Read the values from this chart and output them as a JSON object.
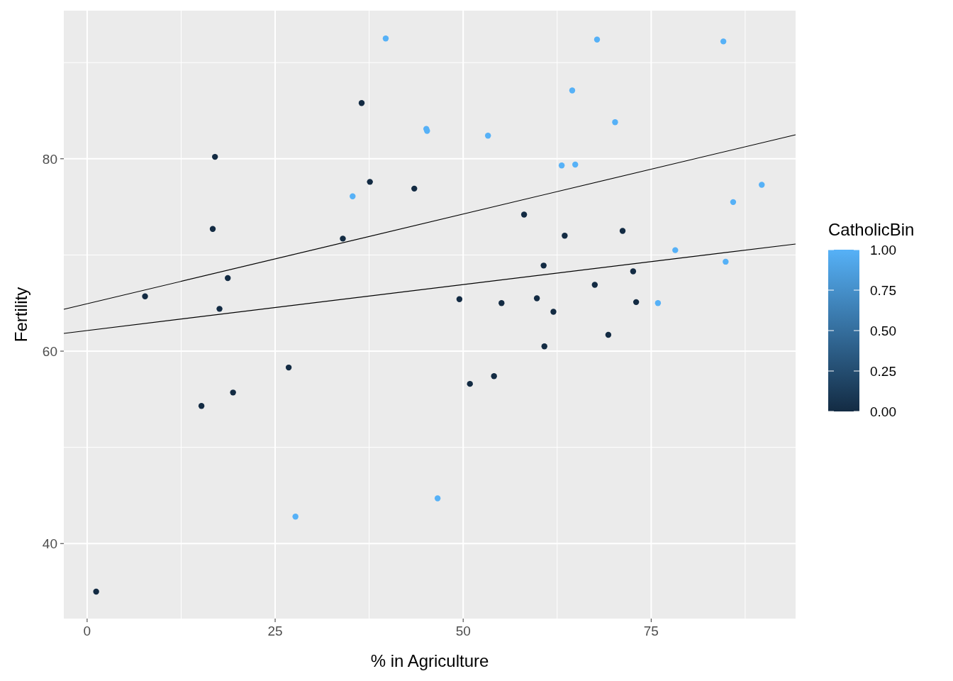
{
  "chart_data": {
    "type": "scatter",
    "xlabel": "% in Agriculture",
    "ylabel": "Fertility",
    "clabel": "CatholicBin",
    "grid": true,
    "xlim": [
      -3.1,
      94.2
    ],
    "ylim": [
      32.2,
      95.4
    ],
    "xticks": [
      0,
      {
        "value": 12.5,
        "label": null
      },
      25,
      {
        "value": 37.5,
        "label": null
      },
      50,
      {
        "value": 62.5,
        "label": null
      },
      75,
      {
        "value": 87.5,
        "label": null
      }
    ],
    "yticks": [
      40,
      {
        "value": 50,
        "label": null
      },
      60,
      {
        "value": 70,
        "label": null
      },
      80,
      {
        "value": 90,
        "label": null
      }
    ],
    "clim": [
      0,
      1
    ],
    "cticks": [
      {
        "value": 0,
        "label": "0.00"
      },
      {
        "value": 0.25,
        "label": "0.25"
      },
      {
        "value": 0.5,
        "label": "0.50"
      },
      {
        "value": 0.75,
        "label": "0.75"
      },
      {
        "value": 1,
        "label": "1.00"
      }
    ],
    "series": [
      {
        "marker": "circle",
        "x": [
          17.0,
          45.1,
          39.7,
          36.5,
          43.5,
          35.3,
          70.2,
          67.8,
          53.3,
          45.2,
          64.5,
          62.0,
          67.5,
          60.7,
          69.3,
          72.6,
          34.0,
          19.4,
          15.2,
          73.0,
          59.8,
          55.1,
          50.9,
          54.1,
          71.2,
          58.1,
          63.5,
          60.8,
          26.8,
          49.5,
          7.7,
          16.7,
          17.6,
          37.6,
          18.7,
          1.2,
          46.6,
          27.7,
          85.9,
          84.9,
          89.7,
          78.2,
          64.9,
          75.9,
          84.6,
          63.1
        ],
        "values": [
          80.2,
          83.1,
          92.5,
          85.8,
          76.9,
          76.1,
          83.8,
          92.4,
          82.4,
          82.9,
          87.1,
          64.1,
          66.9,
          68.9,
          61.7,
          68.3,
          71.7,
          55.7,
          54.3,
          65.1,
          65.5,
          65.0,
          56.6,
          57.4,
          72.5,
          74.2,
          72.0,
          60.5,
          58.3,
          65.4,
          65.7,
          72.7,
          64.4,
          77.6,
          67.6,
          35.0,
          44.7,
          42.8,
          75.5,
          69.3,
          77.3,
          70.5,
          79.4,
          65.0,
          92.2,
          79.3
        ],
        "cvalues": [
          0,
          1,
          1,
          0,
          0,
          1,
          1,
          1,
          1,
          1,
          1,
          0,
          0,
          0,
          0,
          0,
          0,
          0,
          0,
          0,
          0,
          0,
          0,
          0,
          0,
          0,
          0,
          0,
          0,
          0,
          0,
          0,
          0,
          0,
          0,
          0,
          1,
          1,
          1,
          1,
          1,
          1,
          1,
          1,
          1,
          1
        ],
        "colors": [
          "#132b43",
          "#56b1f7",
          "#56b1f7",
          "#132b43",
          "#132b43",
          "#56b1f7",
          "#56b1f7",
          "#56b1f7",
          "#56b1f7",
          "#56b1f7",
          "#56b1f7",
          "#132b43",
          "#132b43",
          "#132b43",
          "#132b43",
          "#132b43",
          "#132b43",
          "#132b43",
          "#132b43",
          "#132b43",
          "#132b43",
          "#132b43",
          "#132b43",
          "#132b43",
          "#132b43",
          "#132b43",
          "#132b43",
          "#132b43",
          "#132b43",
          "#132b43",
          "#132b43",
          "#132b43",
          "#132b43",
          "#132b43",
          "#132b43",
          "#132b43",
          "#56b1f7",
          "#56b1f7",
          "#56b1f7",
          "#56b1f7",
          "#56b1f7",
          "#56b1f7",
          "#56b1f7",
          "#56b1f7",
          "#56b1f7",
          "#56b1f7"
        ]
      },
      {
        "type": "line",
        "color": "#000000",
        "line_style": "solid",
        "x": [
          -3.1,
          94.2
        ],
        "values": [
          64.35,
          82.5
        ]
      },
      {
        "type": "line",
        "color": "#000000",
        "line_style": "solid",
        "x": [
          -3.1,
          94.2
        ],
        "values": [
          61.85,
          71.14
        ]
      }
    ]
  }
}
